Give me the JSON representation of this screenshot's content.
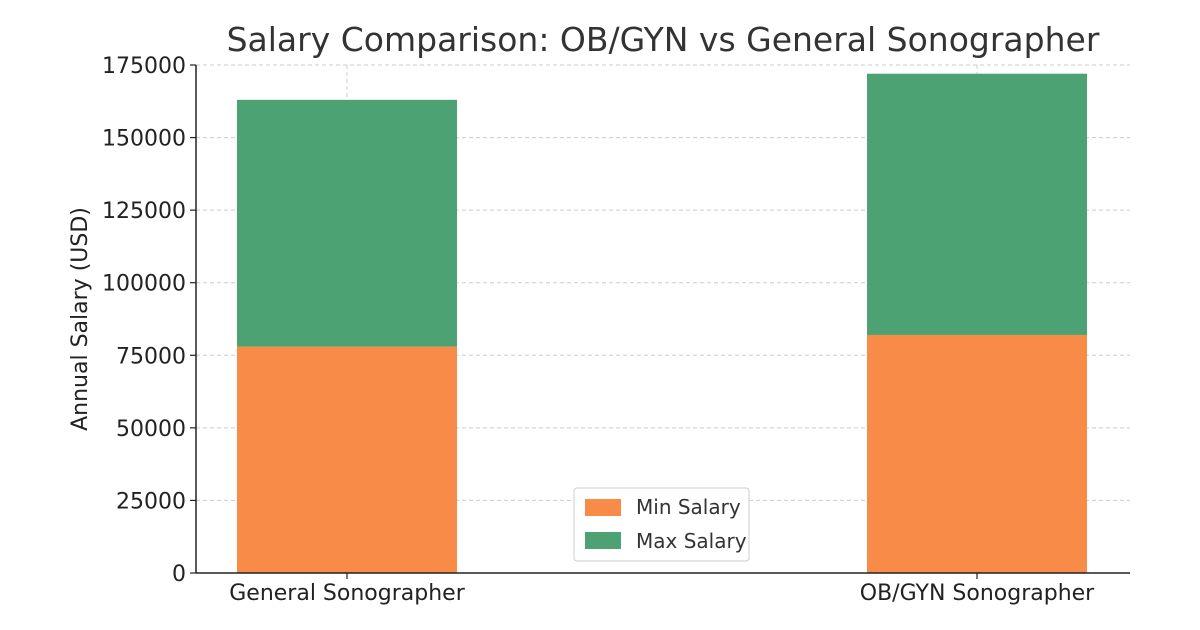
{
  "chart_data": {
    "type": "bar",
    "stacked": true,
    "title": "Salary Comparison: OB/GYN vs General Sonographer",
    "xlabel": "",
    "ylabel": "Annual Salary (USD)",
    "categories": [
      "General Sonographer",
      "OB/GYN Sonographer"
    ],
    "series": [
      {
        "name": "Min Salary",
        "values": [
          78000,
          82000
        ],
        "color": "#f78b47"
      },
      {
        "name": "Max Salary",
        "values": [
          85000,
          90000
        ],
        "color": "#4da274"
      }
    ],
    "ylim": [
      0,
      175000
    ],
    "yticks": [
      0,
      25000,
      50000,
      75000,
      100000,
      125000,
      150000,
      175000
    ],
    "grid": true,
    "legend_position": "lower-center"
  }
}
